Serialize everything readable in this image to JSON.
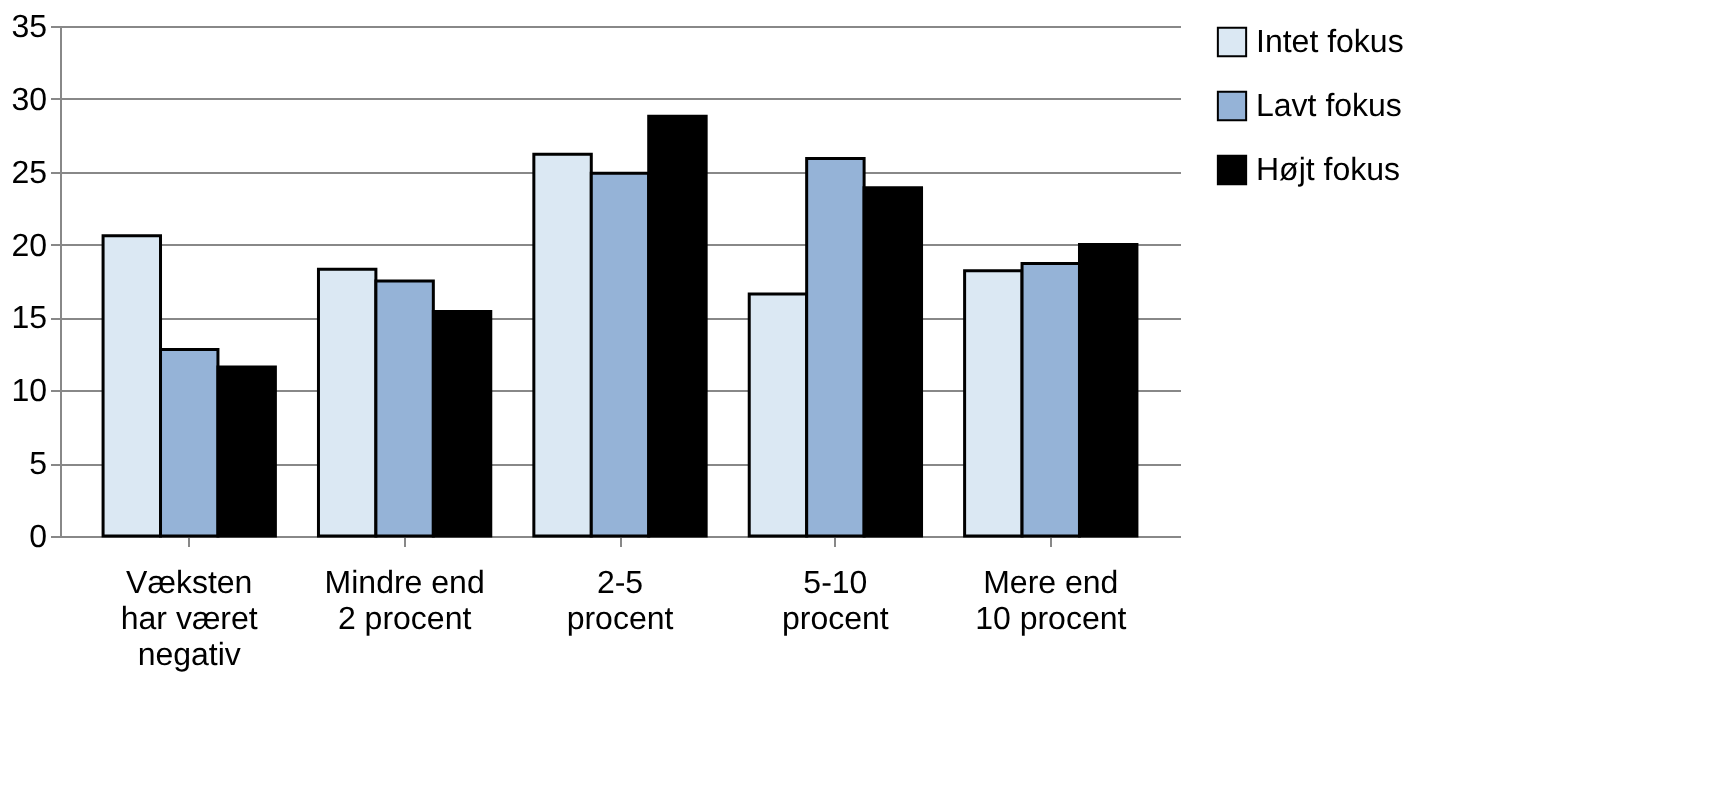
{
  "chart_data": {
    "type": "bar",
    "categories": [
      "Væksten har været negativ",
      "Mindre end 2 procent",
      "2-5 procent",
      "5-10 procent",
      "Mere end 10 procent"
    ],
    "series": [
      {
        "name": "Intet fokus",
        "color": "#dbe8f3",
        "values": [
          20.6,
          18.3,
          26.2,
          16.6,
          18.2
        ]
      },
      {
        "name": "Lavt fokus",
        "color": "#95b3d7",
        "values": [
          12.8,
          17.5,
          24.9,
          25.9,
          18.7
        ]
      },
      {
        "name": "Højt fokus",
        "color": "#000000",
        "values": [
          11.6,
          15.4,
          28.8,
          23.9,
          20.0
        ]
      }
    ],
    "ylim": [
      0,
      35
    ],
    "yticks": [
      0,
      5,
      10,
      15,
      20,
      25,
      30,
      35
    ],
    "grid": "y",
    "legend": "right"
  }
}
